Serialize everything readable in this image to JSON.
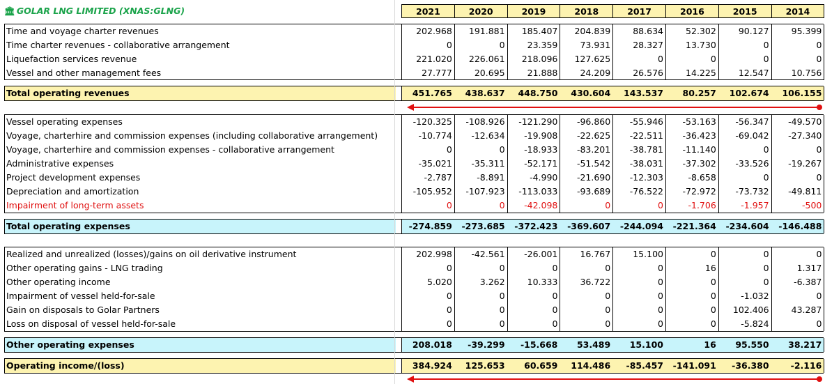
{
  "title": "GOLAR LNG LIMITED (XNAS:GLNG)",
  "title_icon": "bank-icon",
  "accent_color": "#1aa34a",
  "years": [
    "2021",
    "2020",
    "2019",
    "2018",
    "2017",
    "2016",
    "2015",
    "2014"
  ],
  "revenues": [
    {
      "label": "Time and voyage charter revenues",
      "values": [
        "202.968",
        "191.881",
        "185.407",
        "204.839",
        "88.634",
        "52.302",
        "90.127",
        "95.399"
      ]
    },
    {
      "label": "Time charter revenues - collaborative arrangement",
      "values": [
        "0",
        "0",
        "23.359",
        "73.931",
        "28.327",
        "13.730",
        "0",
        "0"
      ]
    },
    {
      "label": "Liquefaction services revenue",
      "values": [
        "221.020",
        "226.061",
        "218.096",
        "127.625",
        "0",
        "0",
        "0",
        "0"
      ]
    },
    {
      "label": "Vessel and other management fees",
      "values": [
        "27.777",
        "20.695",
        "21.888",
        "24.209",
        "26.576",
        "14.225",
        "12.547",
        "10.756"
      ]
    }
  ],
  "total_revenues": {
    "label": "Total operating revenues",
    "values": [
      "451.765",
      "438.637",
      "448.750",
      "430.604",
      "143.537",
      "80.257",
      "102.674",
      "106.155"
    ]
  },
  "expenses": [
    {
      "label": "Vessel operating expenses",
      "values": [
        "-120.325",
        "-108.926",
        "-121.290",
        "-96.860",
        "-55.946",
        "-53.163",
        "-56.347",
        "-49.570"
      ]
    },
    {
      "label": "Voyage, charterhire and commission expenses (including collaborative arrangement)",
      "values": [
        "-10.774",
        "-12.634",
        "-19.908",
        "-22.625",
        "-22.511",
        "-36.423",
        "-69.042",
        "-27.340"
      ]
    },
    {
      "label": "Voyage, charterhire and commission expenses - collaborative arrangement",
      "values": [
        "0",
        "0",
        "-18.933",
        "-83.201",
        "-38.781",
        "-11.140",
        "0",
        "0"
      ]
    },
    {
      "label": "Administrative expenses",
      "values": [
        "-35.021",
        "-35.311",
        "-52.171",
        "-51.542",
        "-38.031",
        "-37.302",
        "-33.526",
        "-19.267"
      ]
    },
    {
      "label": "Project development expenses",
      "values": [
        "-2.787",
        "-8.891",
        "-4.990",
        "-21.690",
        "-12.303",
        "-8.658",
        "0",
        "0"
      ]
    },
    {
      "label": "Depreciation and amortization",
      "values": [
        "-105.952",
        "-107.923",
        "-113.033",
        "-93.689",
        "-76.522",
        "-72.972",
        "-73.732",
        "-49.811"
      ]
    },
    {
      "label": "Impairment of long-term assets",
      "values": [
        "0",
        "0",
        "-42.098",
        "0",
        "0",
        "-1.706",
        "-1.957",
        "-500"
      ],
      "highlight": "red"
    }
  ],
  "total_expenses": {
    "label": "Total operating expenses",
    "values": [
      "-274.859",
      "-273.685",
      "-372.423",
      "-369.607",
      "-244.094",
      "-221.364",
      "-234.604",
      "-146.488"
    ]
  },
  "other": [
    {
      "label": "Realized and unrealized (losses)/gains on oil derivative instrument",
      "values": [
        "202.998",
        "-42.561",
        "-26.001",
        "16.767",
        "15.100",
        "0",
        "0",
        "0"
      ]
    },
    {
      "label": "Other operating gains - LNG trading",
      "values": [
        "0",
        "0",
        "0",
        "0",
        "0",
        "16",
        "0",
        "1.317"
      ]
    },
    {
      "label": "Other operating income",
      "values": [
        "5.020",
        "3.262",
        "10.333",
        "36.722",
        "0",
        "0",
        "0",
        "-6.387"
      ]
    },
    {
      "label": "Impairment of vessel held-for-sale",
      "values": [
        "0",
        "0",
        "0",
        "0",
        "0",
        "0",
        "-1.032",
        "0"
      ]
    },
    {
      "label": "Gain on disposals to Golar Partners",
      "values": [
        "0",
        "0",
        "0",
        "0",
        "0",
        "0",
        "102.406",
        "43.287"
      ]
    },
    {
      "label": "Loss on disposal of vessel held-for-sale",
      "values": [
        "0",
        "0",
        "0",
        "0",
        "0",
        "0",
        "-5.824",
        "0"
      ]
    }
  ],
  "total_other": {
    "label": "Other operating expenses",
    "values": [
      "208.018",
      "-39.299",
      "-15.668",
      "53.489",
      "15.100",
      "16",
      "95.550",
      "38.217"
    ]
  },
  "operating_income": {
    "label": "Operating income/(loss)",
    "values": [
      "384.924",
      "125.653",
      "60.659",
      "114.486",
      "-85.457",
      "-141.091",
      "-36.380",
      "-2.116"
    ]
  },
  "colors": {
    "yellow": "#fdf3b0",
    "cyan": "#c8f4fb",
    "red": "#e01010",
    "arrow": "#e01010"
  }
}
